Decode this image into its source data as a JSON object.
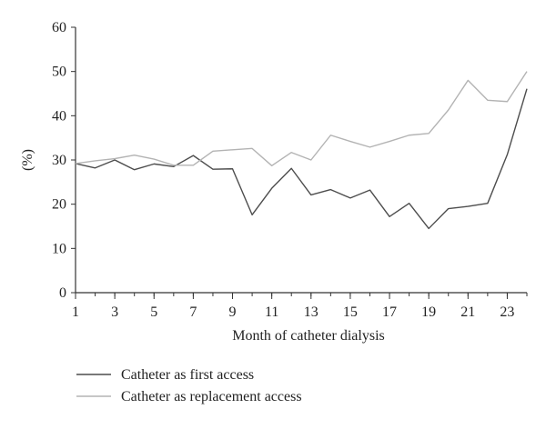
{
  "chart_data": {
    "type": "line",
    "title": "",
    "xlabel": "Month of catheter dialysis",
    "ylabel": "(%)",
    "x": [
      1,
      2,
      3,
      4,
      5,
      6,
      7,
      8,
      9,
      10,
      11,
      12,
      13,
      14,
      15,
      16,
      17,
      18,
      19,
      20,
      21,
      22,
      23,
      24
    ],
    "xlim": [
      1,
      24
    ],
    "ylim": [
      0,
      60
    ],
    "xticks": [
      "1",
      "3",
      "5",
      "7",
      "9",
      "11",
      "13",
      "15",
      "17",
      "19",
      "21",
      "23"
    ],
    "yticks": [
      "0",
      "10",
      "20",
      "30",
      "40",
      "50",
      "60"
    ],
    "grid": false,
    "legend_position": "bottom-left",
    "series": [
      {
        "name": "Catheter as first access",
        "color": "#4d4d4d",
        "values": [
          29.2,
          28.2,
          30.0,
          27.8,
          29.1,
          28.5,
          31.0,
          27.9,
          28.0,
          17.6,
          23.6,
          28.1,
          22.1,
          23.3,
          21.4,
          23.2,
          17.2,
          20.2,
          14.5,
          19.0,
          19.5,
          20.2,
          31.2,
          46.1
        ]
      },
      {
        "name": "Catheter as replacement access",
        "color": "#b3b3b3",
        "values": [
          29.2,
          29.8,
          30.3,
          31.1,
          30.2,
          28.8,
          28.8,
          32.0,
          32.3,
          32.6,
          28.7,
          31.7,
          30.0,
          35.6,
          34.2,
          32.9,
          34.2,
          35.6,
          36.0,
          41.3,
          48.0,
          43.5,
          43.2,
          50.0
        ]
      }
    ]
  }
}
